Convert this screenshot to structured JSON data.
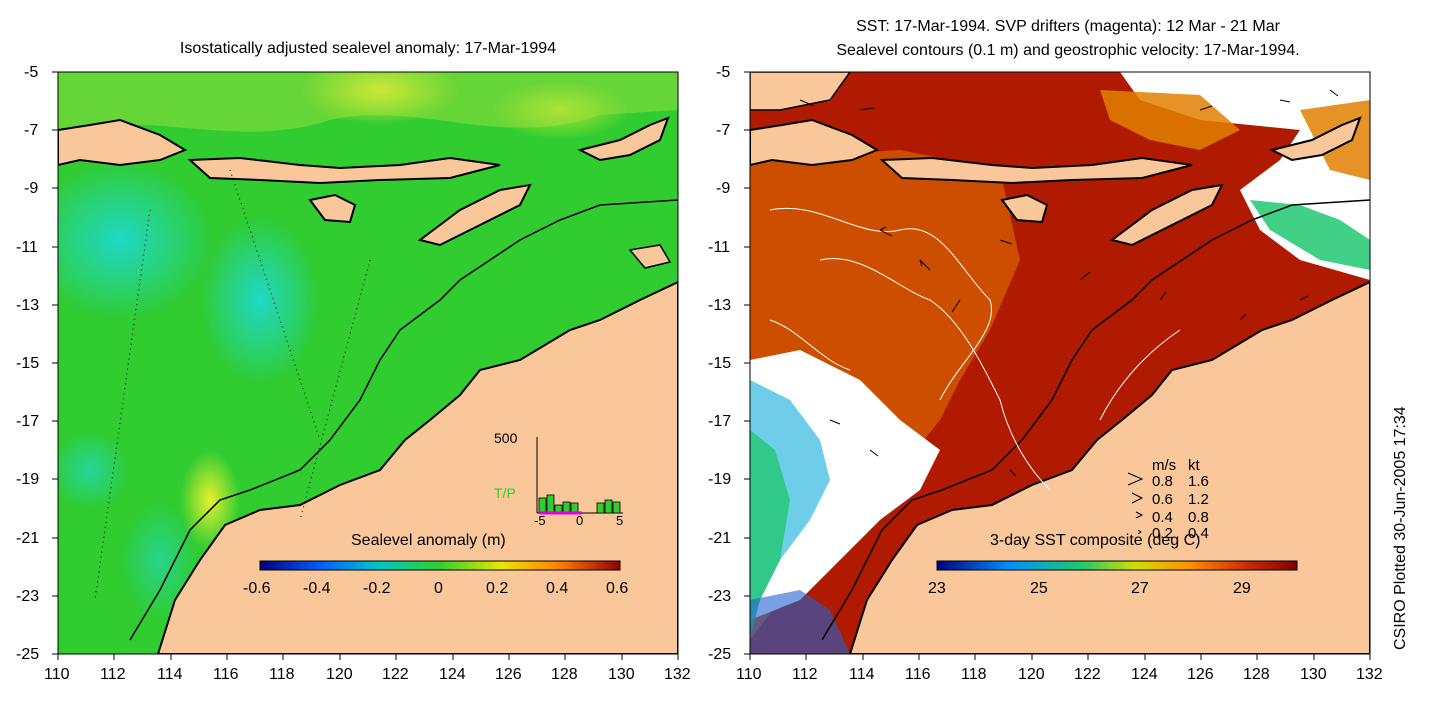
{
  "titles": {
    "left": "Isostatically adjusted sealevel anomaly: 17-Mar-1994",
    "right_line1": "SST: 17-Mar-1994. SVP drifters (magenta): 12 Mar - 21 Mar",
    "right_line2": "Sealevel contours (0.1 m) and geostrophic velocity: 17-Mar-1994."
  },
  "axes": {
    "x_ticks": [
      "110",
      "112",
      "114",
      "116",
      "118",
      "120",
      "122",
      "124",
      "126",
      "128",
      "130",
      "132"
    ],
    "y_ticks": [
      "-5",
      "-7",
      "-9",
      "-11",
      "-13",
      "-15",
      "-17",
      "-19",
      "-21",
      "-23",
      "-25"
    ],
    "lon_range": [
      110,
      132
    ],
    "lat_range": [
      -25,
      -5
    ]
  },
  "left_map": {
    "colorbar_title": "Sealevel anomaly (m)",
    "colorbar_ticks": [
      "-0.6",
      "-0.4",
      "-0.2",
      "0",
      "0.2",
      "0.4",
      "0.6"
    ],
    "inset": {
      "y_label": "500",
      "series_label": "T/P",
      "x_ticks": [
        "-5",
        "0",
        "5"
      ]
    }
  },
  "right_map": {
    "colorbar_title": "3-day SST composite (deg C)",
    "colorbar_ticks": [
      "23",
      "25",
      "27",
      "29"
    ],
    "velocity_legend": {
      "header_ms": "m/s",
      "header_kt": "kt",
      "rows": [
        {
          "ms": "0.8",
          "kt": "1.6"
        },
        {
          "ms": "0.6",
          "kt": "1.2"
        },
        {
          "ms": "0.4",
          "kt": "0.8"
        },
        {
          "ms": "0.2",
          "kt": "0.4"
        }
      ]
    }
  },
  "credit": "CSIRO Plotted 30-Jun-2005 17:34",
  "colors": {
    "land": "#f9c79a",
    "sealevel_base": "#2ecc2e",
    "sealevel_low": "#28c8a8",
    "sealevel_high": "#d8f02a",
    "sst_warm": "#b01a00",
    "sst_mid": "#e07a00",
    "sst_cool": "#30b8e0"
  }
}
